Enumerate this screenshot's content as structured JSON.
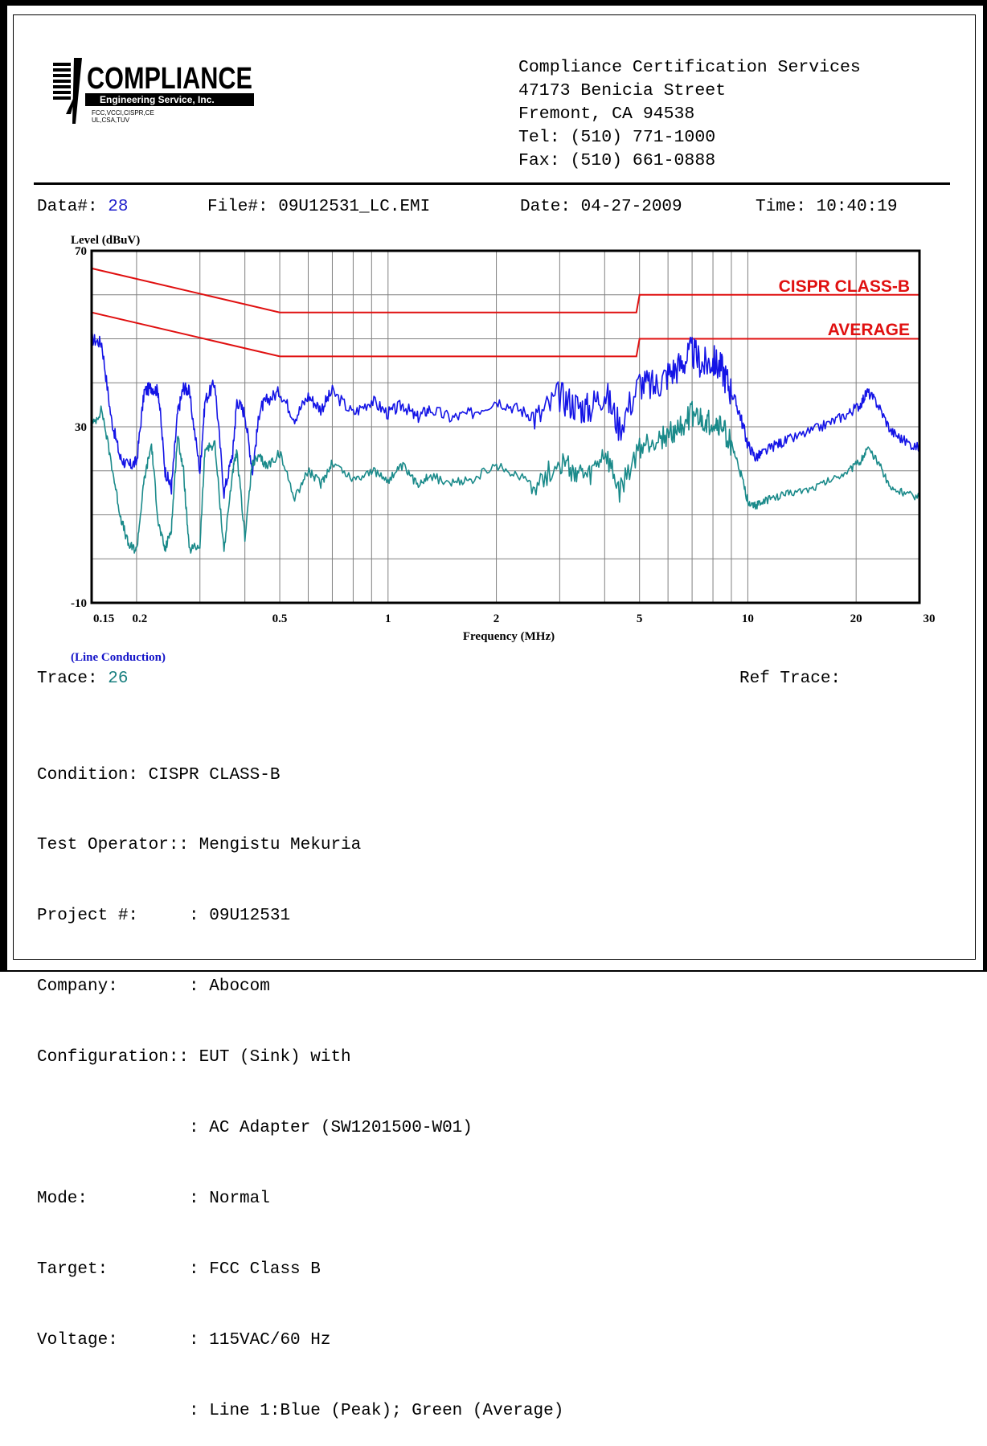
{
  "logo": {
    "name": "COMPLIANCE",
    "subtitle": "Engineering Service, Inc.",
    "small_line1": "FCC,VCCI,CISPR,CE",
    "small_line2": "UL,CSA,TUV"
  },
  "address": {
    "line1": "Compliance Certification Services",
    "line2": "47173 Benicia Street",
    "line3": "Fremont, CA 94538",
    "line4": "Tel: (510) 771-1000",
    "line5": "Fax: (510) 661-0888"
  },
  "info": {
    "data_label": "Data#:",
    "data_value": "28",
    "file": "File#: 09U12531_LC.EMI",
    "date": "Date: 04-27-2009",
    "time": "Time: 10:40:19"
  },
  "trace": {
    "label": "Trace:",
    "value": "26",
    "ref_label": "Ref Trace:"
  },
  "details": {
    "condition": "Condition: CISPR CLASS-B",
    "operator": "Test Operator:: Mengistu Mekuria",
    "project": "Project #:     : 09U12531",
    "company": "Company:       : Abocom",
    "config1": "Configuration:: EUT (Sink) with",
    "config2": "               : AC Adapter (SW1201500-W01)",
    "mode": "Mode:          : Normal",
    "target": "Target:        : FCC Class B",
    "voltage": "Voltage:       : 115VAC/60 Hz",
    "line": "               : Line 1:Blue (Peak); Green (Average)"
  },
  "colors": {
    "peak": "#1414e6",
    "average": "#1a8a8a",
    "limit": "#e01010",
    "grid": "#808080"
  },
  "chart_data": {
    "type": "line",
    "xscale": "log",
    "xlim": [
      0.15,
      30
    ],
    "ylim": [
      -10,
      70
    ],
    "grid": true,
    "ylabel": "Level (dBuV)",
    "xlabel": "Frequency (MHz)",
    "subtitle": "(Line Conduction)",
    "ytick_labels": [
      "70",
      "30",
      "-10"
    ],
    "ytick_values": [
      70,
      30,
      -10
    ],
    "xtick_labels": [
      "0.15",
      "0.2",
      "0.5",
      "1",
      "2",
      "5",
      "10",
      "20",
      "30"
    ],
    "xtick_values": [
      0.15,
      0.2,
      0.5,
      1,
      2,
      5,
      10,
      20,
      30
    ],
    "annotations": [
      "CISPR CLASS-B",
      "AVERAGE"
    ],
    "series": [
      {
        "name": "CISPR CLASS-B",
        "x": [
          0.15,
          0.5,
          0.5,
          4.9,
          5,
          30
        ],
        "y": [
          66,
          56,
          56,
          56,
          60,
          60
        ]
      },
      {
        "name": "AVERAGE",
        "x": [
          0.15,
          0.5,
          0.5,
          4.9,
          5,
          30
        ],
        "y": [
          56,
          46,
          46,
          46,
          50,
          50
        ]
      },
      {
        "name": "Peak",
        "x": [
          0.15,
          0.16,
          0.17,
          0.18,
          0.19,
          0.2,
          0.21,
          0.22,
          0.23,
          0.24,
          0.25,
          0.26,
          0.27,
          0.28,
          0.3,
          0.31,
          0.33,
          0.35,
          0.37,
          0.38,
          0.4,
          0.42,
          0.44,
          0.46,
          0.5,
          0.55,
          0.6,
          0.65,
          0.7,
          0.8,
          0.9,
          1.0,
          1.1,
          1.2,
          1.3,
          1.5,
          1.7,
          2.0,
          2.3,
          2.6,
          3.0,
          3.3,
          3.6,
          4.0,
          4.4,
          5.0,
          5.5,
          6.0,
          6.5,
          7.0,
          7.5,
          8.0,
          8.5,
          9.0,
          9.5,
          10.0,
          10.5,
          11.0,
          12.0,
          13.0,
          15.0,
          17.0,
          19.0,
          20.5,
          21.5,
          23.0,
          25.0,
          27.0,
          30.0
        ],
        "y": [
          50,
          49,
          32,
          23,
          21,
          22,
          38,
          39,
          38,
          20,
          16,
          33,
          39,
          38,
          20,
          36,
          40,
          15,
          24,
          36,
          33,
          20,
          34,
          36,
          38,
          32,
          37,
          34,
          38,
          33,
          36,
          33,
          35,
          32,
          34,
          32,
          33,
          36,
          34,
          32,
          37,
          35,
          34,
          38,
          30,
          40,
          39,
          42,
          44,
          47,
          44,
          45,
          43,
          38,
          33,
          26,
          23,
          24,
          26,
          27,
          29,
          31,
          33,
          35,
          38,
          35,
          29,
          27,
          25
        ]
      },
      {
        "name": "Average",
        "x": [
          0.15,
          0.16,
          0.17,
          0.18,
          0.19,
          0.2,
          0.21,
          0.22,
          0.23,
          0.24,
          0.25,
          0.26,
          0.27,
          0.28,
          0.3,
          0.31,
          0.33,
          0.35,
          0.37,
          0.38,
          0.4,
          0.42,
          0.44,
          0.46,
          0.5,
          0.55,
          0.6,
          0.65,
          0.7,
          0.8,
          0.9,
          1.0,
          1.1,
          1.2,
          1.3,
          1.5,
          1.7,
          2.0,
          2.3,
          2.6,
          3.0,
          3.3,
          3.6,
          4.0,
          4.4,
          5.0,
          5.5,
          6.0,
          6.5,
          7.0,
          7.5,
          8.0,
          8.5,
          9.0,
          9.5,
          10.0,
          10.5,
          11.0,
          12.0,
          13.0,
          15.0,
          17.0,
          19.0,
          20.5,
          21.5,
          23.0,
          25.0,
          27.0,
          30.0
        ],
        "y": [
          30,
          34,
          22,
          10,
          3,
          2,
          18,
          26,
          8,
          2,
          7,
          28,
          20,
          2,
          3,
          25,
          26,
          2,
          20,
          24,
          5,
          22,
          23,
          21,
          24,
          14,
          20,
          17,
          22,
          18,
          20,
          18,
          21,
          17,
          19,
          17,
          18,
          21,
          19,
          17,
          22,
          20,
          18,
          24,
          15,
          25,
          27,
          28,
          30,
          33,
          31,
          31,
          30,
          26,
          20,
          13,
          12,
          13,
          14,
          15,
          16,
          18,
          20,
          22,
          25,
          22,
          16,
          15,
          14
        ]
      }
    ]
  }
}
